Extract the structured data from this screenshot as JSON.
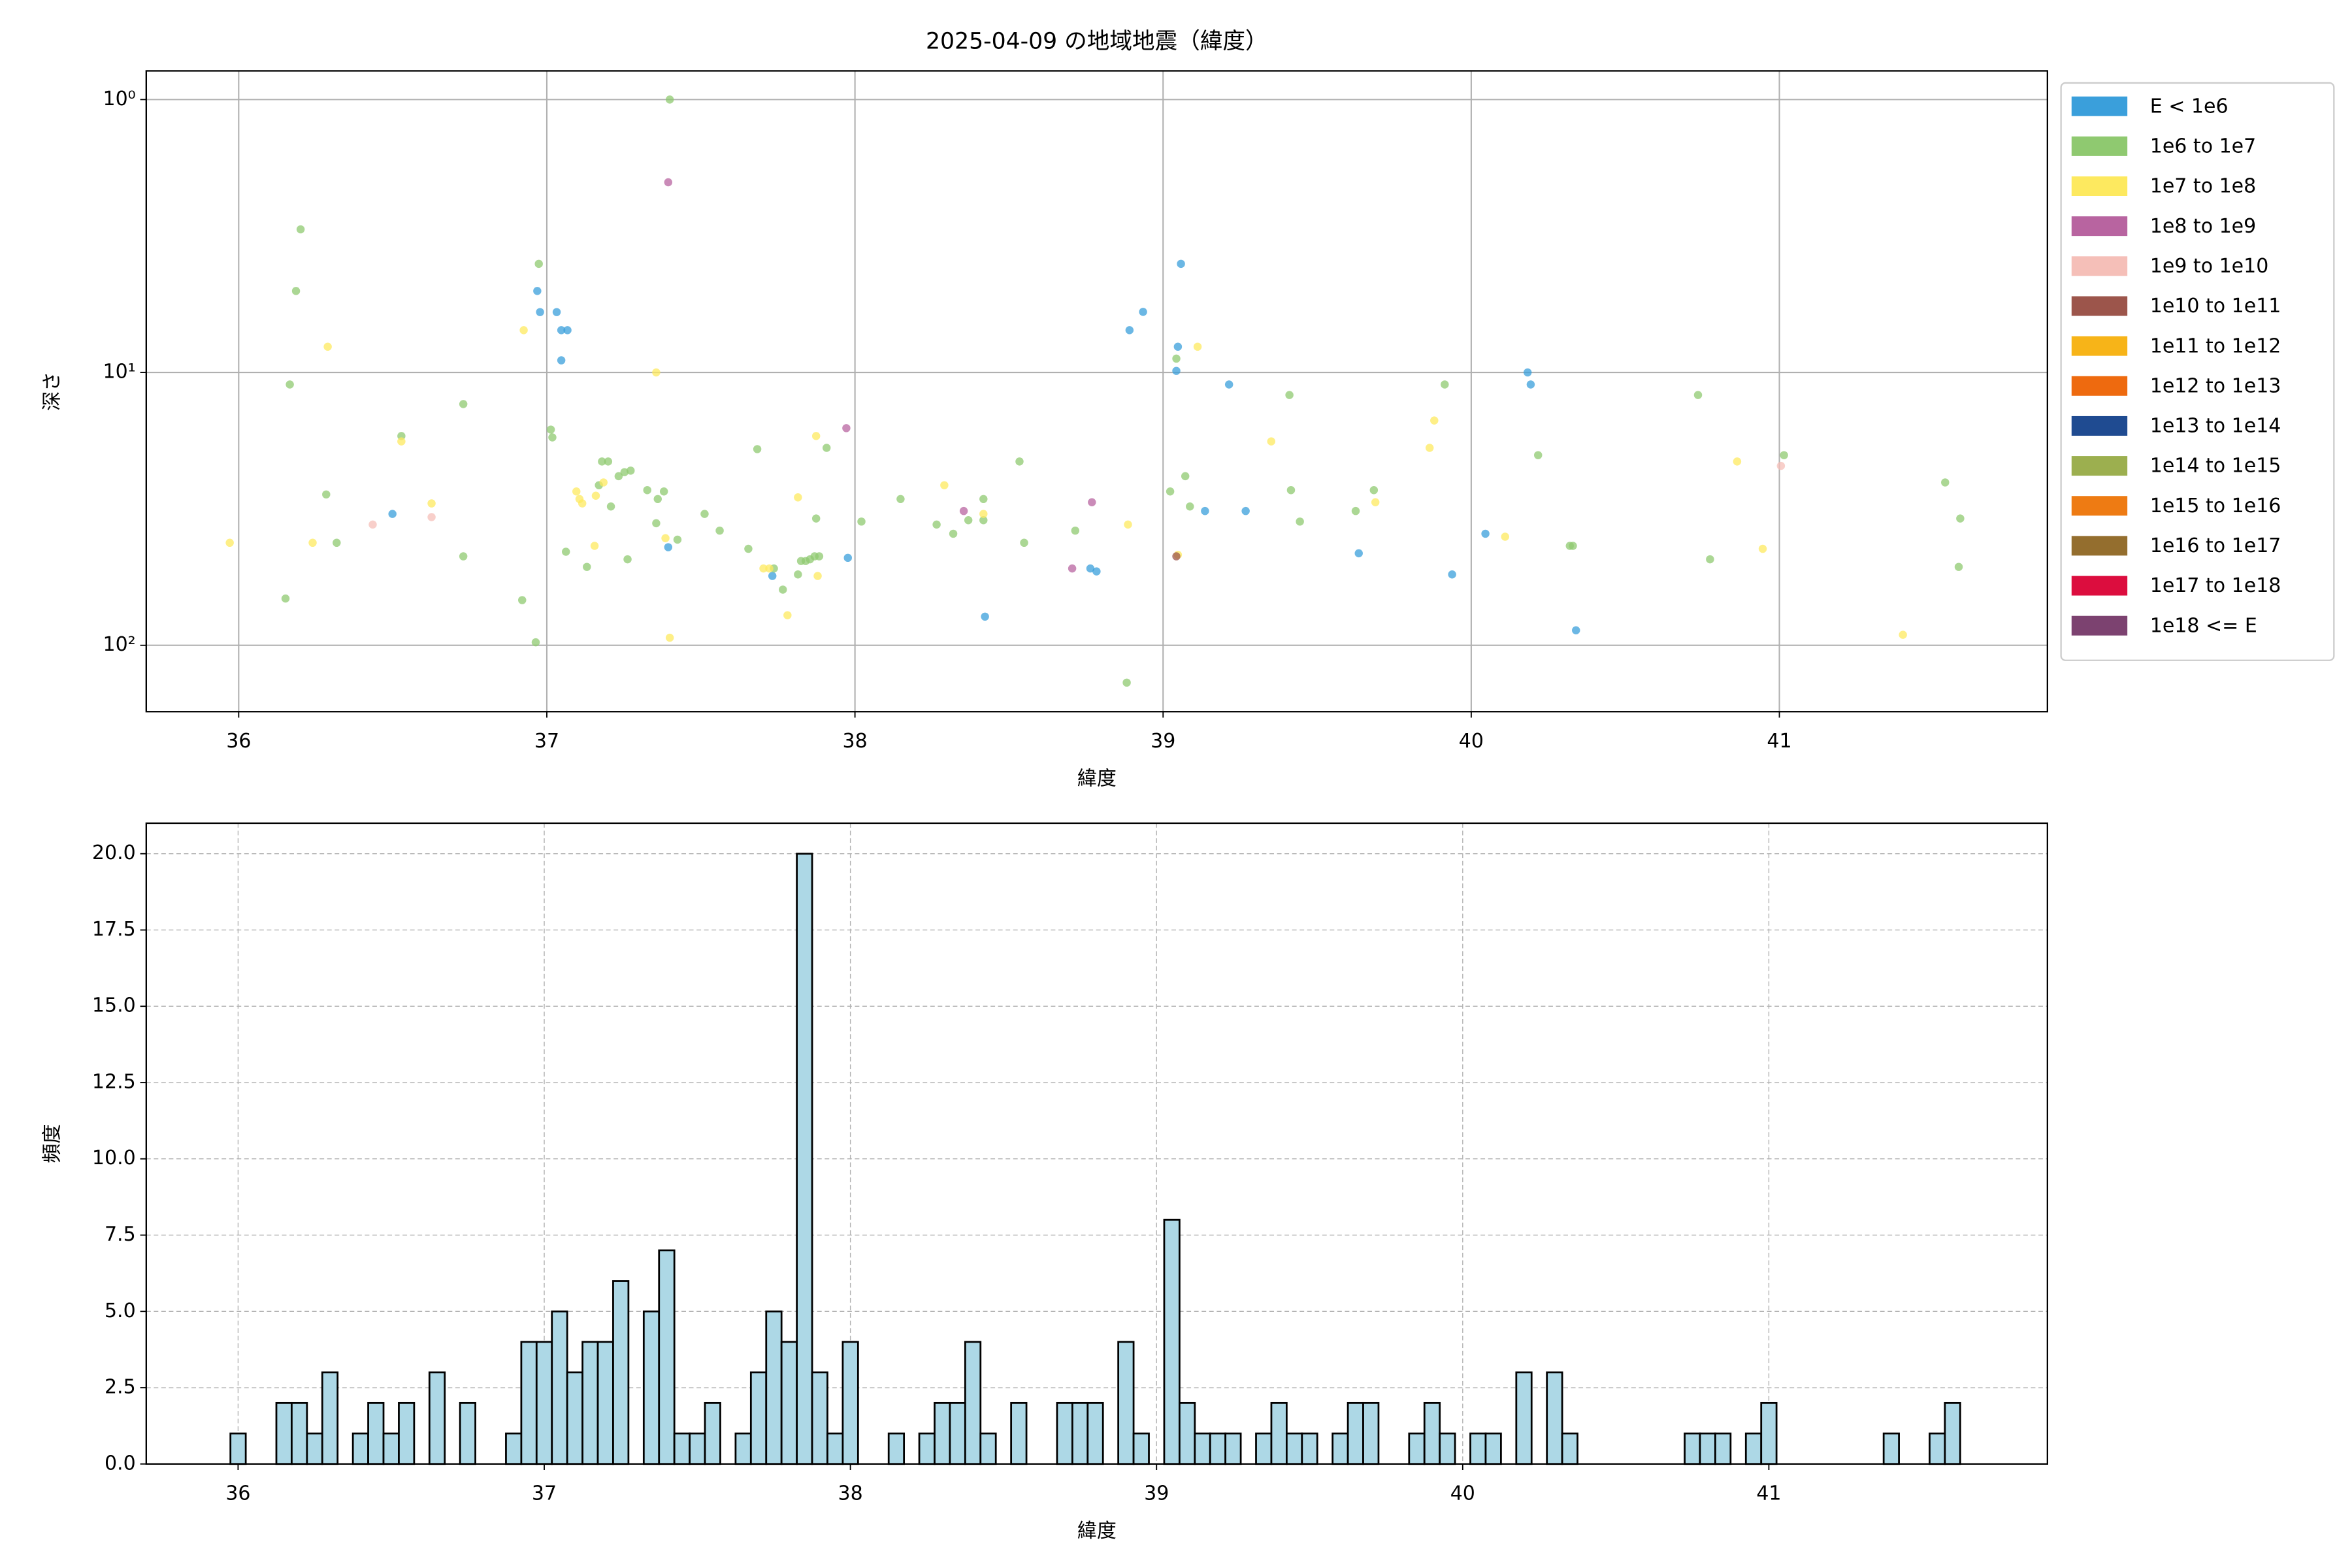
{
  "chart_data": [
    {
      "type": "scatter",
      "title": "2025-04-09 の地域地震（緯度）",
      "xlabel": "緯度",
      "ylabel": "深さ",
      "yscale": "log",
      "grid": "solid",
      "legend": "outside",
      "xlim": [
        35.7,
        41.87
      ],
      "xticks": [
        36,
        37,
        38,
        39,
        40,
        41
      ],
      "ylim": [
        175,
        0.785
      ],
      "yticks": [
        {
          "value": 1,
          "label": "10⁰"
        },
        {
          "value": 10,
          "label": "10¹"
        },
        {
          "value": 100,
          "label": "10²"
        }
      ],
      "series": [
        {
          "name": "E < 1e6",
          "color": "#3a9fdb",
          "x": [
            36.969,
            36.978,
            37.032,
            37.047,
            37.067,
            37.047,
            37.394,
            36.499,
            38.891,
            38.935,
            39.058,
            39.048,
            39.043,
            39.214,
            39.136,
            39.268,
            38.764,
            38.784,
            39.635,
            39.938,
            40.046,
            40.183,
            40.193,
            40.34,
            38.422,
            37.732,
            37.977
          ],
          "values": [
            5.03,
            6.01,
            6.01,
            7.0,
            7.0,
            9.03,
            43.7,
            33.0,
            7.0,
            6.0,
            4.0,
            8.05,
            9.87,
            11.07,
            32.2,
            32.2,
            52.3,
            53.6,
            46.0,
            55.0,
            39.0,
            10.0,
            11.07,
            88.1,
            78.5,
            55.7,
            47.8
          ]
        },
        {
          "name": "1e6 to 1e7",
          "color": "#8fc970",
          "x": [
            36.201,
            36.186,
            36.166,
            36.152,
            36.284,
            36.318,
            36.528,
            36.729,
            36.729,
            36.92,
            36.964,
            36.974,
            37.013,
            37.018,
            37.062,
            37.13,
            37.169,
            37.179,
            37.199,
            37.208,
            37.233,
            37.252,
            37.262,
            37.272,
            37.326,
            37.355,
            37.36,
            37.38,
            37.399,
            37.424,
            37.512,
            37.561,
            37.654,
            37.683,
            37.737,
            37.766,
            37.815,
            37.825,
            37.84,
            37.854,
            37.869,
            37.884,
            37.908,
            37.874,
            38.021,
            38.148,
            38.265,
            38.319,
            38.368,
            38.417,
            38.417,
            38.534,
            38.549,
            38.715,
            38.882,
            39.023,
            39.043,
            39.072,
            39.087,
            39.41,
            39.415,
            39.444,
            39.625,
            39.684,
            39.914,
            40.217,
            40.32,
            40.33,
            40.736,
            40.775,
            41.015,
            41.538,
            41.587,
            41.582
          ],
          "values": [
            2.99,
            5.03,
            11.07,
            67.4,
            28.0,
            42.1,
            17.1,
            13.06,
            47.2,
            68.3,
            97.5,
            4.0,
            16.2,
            17.3,
            45.4,
            51.6,
            25.9,
            21.2,
            21.2,
            31.0,
            24.0,
            23.2,
            48.4,
            22.9,
            27.0,
            35.7,
            29.1,
            27.3,
            1.0,
            41.0,
            33.0,
            38.0,
            44.3,
            19.1,
            52.3,
            62.5,
            55.0,
            49.1,
            49.1,
            48.4,
            47.2,
            47.2,
            18.9,
            34.3,
            35.2,
            29.1,
            36.1,
            39.0,
            34.8,
            34.8,
            29.1,
            21.2,
            42.1,
            38.0,
            137,
            27.3,
            8.9,
            24.0,
            31.0,
            12.1,
            27.0,
            35.2,
            32.2,
            27.0,
            11.07,
            20.1,
            43.2,
            43.2,
            12.1,
            48.4,
            20.1,
            25.3,
            34.3,
            51.6
          ]
        },
        {
          "name": "1e7 to 1e8",
          "color": "#fde95f",
          "x": [
            35.971,
            36.24,
            36.289,
            36.528,
            36.626,
            36.925,
            37.096,
            37.106,
            37.115,
            37.159,
            37.155,
            37.184,
            37.355,
            37.385,
            37.399,
            37.703,
            37.722,
            37.781,
            37.815,
            37.874,
            37.879,
            38.29,
            38.417,
            38.886,
            39.048,
            39.112,
            39.351,
            39.865,
            39.88,
            39.689,
            40.11,
            40.863,
            40.946,
            41.401
          ],
          "values": [
            42.1,
            42.1,
            8.05,
            17.9,
            30.2,
            7.0,
            27.3,
            29.1,
            30.2,
            28.3,
            43.2,
            25.3,
            10.0,
            40.5,
            93.8,
            52.3,
            52.3,
            77.6,
            28.7,
            17.1,
            55.7,
            25.9,
            33.0,
            36.1,
            46.6,
            8.05,
            17.9,
            18.9,
            15.0,
            29.9,
            40.0,
            21.2,
            44.3,
            91.5
          ]
        },
        {
          "name": "1e8 to 1e9",
          "color": "#b864a0",
          "x": [
            37.394,
            37.972,
            38.769,
            38.353,
            38.705
          ],
          "values": [
            2.01,
            16.0,
            29.9,
            32.2,
            52.3
          ]
        },
        {
          "name": "1e9 to 1e10",
          "color": "#f5bfb8",
          "x": [
            36.435,
            36.626,
            41.005
          ],
          "values": [
            36.1,
            33.9,
            22.0
          ]
        },
        {
          "name": "1e10 to 1e11",
          "color": "#9c554b",
          "x": [
            39.043
          ],
          "values": [
            47.2
          ]
        },
        {
          "name": "1e11 to 1e12",
          "color": "#f7b418",
          "x": [],
          "values": []
        },
        {
          "name": "1e12 to 1e13",
          "color": "#ee6a0f",
          "x": [],
          "values": []
        },
        {
          "name": "1e13 to 1e14",
          "color": "#1f4b91",
          "x": [],
          "values": []
        },
        {
          "name": "1e14 to 1e15",
          "color": "#9caf4f",
          "x": [],
          "values": []
        },
        {
          "name": "1e15 to 1e16",
          "color": "#ee7b13",
          "x": [],
          "values": []
        },
        {
          "name": "1e16 to 1e17",
          "color": "#946e2e",
          "x": [],
          "values": []
        },
        {
          "name": "1e17 to 1e18",
          "color": "#dc0d3e",
          "x": [],
          "values": []
        },
        {
          "name": "1e18 <= E",
          "color": "#7c4270",
          "x": [],
          "values": []
        }
      ]
    },
    {
      "type": "histogram",
      "xlabel": "緯度",
      "ylabel": "頻度",
      "grid": "dashed",
      "color": "#add8e6",
      "edgecolor": "#000000",
      "xlim": [
        35.7,
        41.91
      ],
      "xticks": [
        36,
        37,
        38,
        39,
        40,
        41
      ],
      "ylim": [
        0,
        21
      ],
      "yticks": [
        {
          "value": 0,
          "label": "0.0"
        },
        {
          "value": 2.5,
          "label": "2.5"
        },
        {
          "value": 5,
          "label": "5.0"
        },
        {
          "value": 7.5,
          "label": "7.5"
        },
        {
          "value": 10,
          "label": "10.0"
        },
        {
          "value": 12.5,
          "label": "12.5"
        },
        {
          "value": 15,
          "label": "15.0"
        },
        {
          "value": 17.5,
          "label": "17.5"
        },
        {
          "value": 20,
          "label": "20.0"
        }
      ],
      "bins": [
        35.975,
        36.025,
        36.075,
        36.125,
        36.175,
        36.225,
        36.275,
        36.325,
        36.375,
        36.425,
        36.475,
        36.525,
        36.575,
        36.625,
        36.675,
        36.725,
        36.775,
        36.825,
        36.875,
        36.925,
        36.975,
        37.025,
        37.075,
        37.125,
        37.175,
        37.225,
        37.275,
        37.325,
        37.375,
        37.425,
        37.475,
        37.525,
        37.575,
        37.625,
        37.675,
        37.725,
        37.775,
        37.825,
        37.875,
        37.925,
        37.975,
        38.025,
        38.075,
        38.125,
        38.175,
        38.225,
        38.275,
        38.325,
        38.375,
        38.425,
        38.475,
        38.525,
        38.575,
        38.625,
        38.675,
        38.725,
        38.775,
        38.825,
        38.875,
        38.925,
        38.975,
        39.025,
        39.075,
        39.125,
        39.175,
        39.225,
        39.275,
        39.325,
        39.375,
        39.425,
        39.475,
        39.525,
        39.575,
        39.625,
        39.675,
        39.725,
        39.775,
        39.825,
        39.875,
        39.925,
        39.975,
        40.025,
        40.075,
        40.125,
        40.175,
        40.225,
        40.275,
        40.325,
        40.375,
        40.425,
        40.475,
        40.525,
        40.575,
        40.625,
        40.675,
        40.725,
        40.775,
        40.825,
        40.875,
        40.925,
        40.975,
        41.025,
        41.075,
        41.125,
        41.175,
        41.225,
        41.275,
        41.325,
        41.375,
        41.425,
        41.475,
        41.525,
        41.575,
        41.625
      ],
      "values": [
        1,
        0,
        0,
        2,
        2,
        1,
        3,
        0,
        1,
        2,
        1,
        2,
        0,
        3,
        0,
        2,
        0,
        0,
        1,
        4,
        4,
        5,
        3,
        4,
        4,
        6,
        0,
        5,
        7,
        1,
        1,
        2,
        0,
        1,
        3,
        5,
        4,
        20,
        3,
        1,
        4,
        0,
        0,
        1,
        0,
        1,
        2,
        2,
        4,
        1,
        0,
        2,
        0,
        0,
        2,
        2,
        2,
        0,
        4,
        1,
        0,
        8,
        2,
        1,
        1,
        1,
        0,
        1,
        2,
        1,
        1,
        0,
        1,
        2,
        2,
        0,
        0,
        1,
        2,
        1,
        0,
        1,
        1,
        0,
        3,
        0,
        3,
        1,
        0,
        0,
        0,
        0,
        0,
        0,
        0,
        1,
        1,
        1,
        0,
        1,
        2,
        0,
        0,
        0,
        0,
        0,
        0,
        0,
        1,
        0,
        0,
        1,
        2
      ]
    }
  ]
}
